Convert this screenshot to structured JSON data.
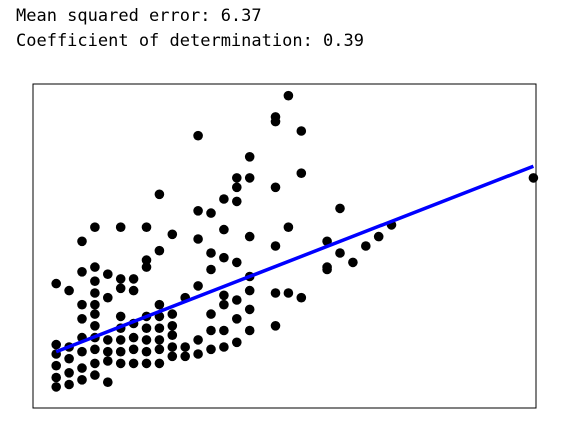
{
  "output": {
    "mse_line": "Mean squared error: 6.37",
    "r2_line": "Coefficient of determination: 0.39"
  },
  "colors": {
    "points": "#000000",
    "regression_line": "#0000ff",
    "frame": "#000000"
  },
  "chart_data": {
    "type": "scatter",
    "title": "",
    "xlabel": "",
    "ylabel": "",
    "xlim": [
      1.0,
      20.5
    ],
    "ylim": [
      -0.3,
      13.5
    ],
    "axes_ticks": "none",
    "grid": false,
    "points": [
      [
        1.9,
        0.6
      ],
      [
        1.9,
        1.0
      ],
      [
        1.9,
        1.5
      ],
      [
        1.9,
        2.0
      ],
      [
        1.9,
        2.4
      ],
      [
        1.9,
        5.0
      ],
      [
        2.4,
        0.7
      ],
      [
        2.4,
        1.2
      ],
      [
        2.4,
        1.8
      ],
      [
        2.4,
        2.3
      ],
      [
        2.4,
        4.7
      ],
      [
        2.9,
        0.9
      ],
      [
        2.9,
        1.4
      ],
      [
        2.9,
        2.1
      ],
      [
        2.9,
        2.7
      ],
      [
        2.9,
        3.5
      ],
      [
        2.9,
        4.1
      ],
      [
        2.9,
        5.5
      ],
      [
        2.9,
        6.8
      ],
      [
        3.4,
        1.1
      ],
      [
        3.4,
        1.6
      ],
      [
        3.4,
        2.2
      ],
      [
        3.4,
        2.7
      ],
      [
        3.4,
        3.2
      ],
      [
        3.4,
        3.7
      ],
      [
        3.4,
        4.1
      ],
      [
        3.4,
        4.6
      ],
      [
        3.4,
        5.1
      ],
      [
        3.4,
        5.7
      ],
      [
        3.4,
        7.4
      ],
      [
        3.9,
        0.8
      ],
      [
        3.9,
        1.7
      ],
      [
        3.9,
        2.1
      ],
      [
        3.9,
        2.6
      ],
      [
        3.9,
        4.4
      ],
      [
        3.9,
        5.4
      ],
      [
        4.4,
        1.6
      ],
      [
        4.4,
        2.1
      ],
      [
        4.4,
        2.6
      ],
      [
        4.4,
        3.1
      ],
      [
        4.4,
        3.6
      ],
      [
        4.4,
        4.8
      ],
      [
        4.4,
        5.2
      ],
      [
        4.4,
        7.4
      ],
      [
        4.9,
        1.6
      ],
      [
        4.9,
        2.2
      ],
      [
        4.9,
        2.7
      ],
      [
        4.9,
        3.3
      ],
      [
        4.9,
        4.7
      ],
      [
        4.9,
        5.2
      ],
      [
        5.4,
        1.6
      ],
      [
        5.4,
        2.1
      ],
      [
        5.4,
        2.6
      ],
      [
        5.4,
        3.1
      ],
      [
        5.4,
        3.6
      ],
      [
        5.4,
        5.7
      ],
      [
        5.4,
        6.0
      ],
      [
        5.4,
        7.4
      ],
      [
        5.9,
        1.6
      ],
      [
        5.9,
        2.2
      ],
      [
        5.9,
        2.6
      ],
      [
        5.9,
        3.1
      ],
      [
        5.9,
        3.6
      ],
      [
        5.9,
        4.1
      ],
      [
        5.9,
        6.4
      ],
      [
        5.9,
        8.8
      ],
      [
        6.4,
        1.9
      ],
      [
        6.4,
        2.3
      ],
      [
        6.4,
        2.8
      ],
      [
        6.4,
        3.2
      ],
      [
        6.4,
        3.7
      ],
      [
        6.4,
        7.1
      ],
      [
        6.9,
        1.9
      ],
      [
        6.9,
        2.3
      ],
      [
        6.9,
        4.4
      ],
      [
        7.4,
        2.0
      ],
      [
        7.4,
        2.6
      ],
      [
        7.4,
        4.9
      ],
      [
        7.4,
        6.9
      ],
      [
        7.4,
        8.1
      ],
      [
        7.4,
        11.3
      ],
      [
        7.9,
        2.2
      ],
      [
        7.9,
        3.0
      ],
      [
        7.9,
        3.7
      ],
      [
        7.9,
        5.6
      ],
      [
        7.9,
        6.3
      ],
      [
        7.9,
        8.0
      ],
      [
        8.4,
        2.3
      ],
      [
        8.4,
        3.0
      ],
      [
        8.4,
        4.1
      ],
      [
        8.4,
        4.5
      ],
      [
        8.4,
        6.1
      ],
      [
        8.4,
        7.3
      ],
      [
        8.4,
        8.6
      ],
      [
        8.9,
        2.5
      ],
      [
        8.9,
        3.5
      ],
      [
        8.9,
        4.3
      ],
      [
        8.9,
        5.9
      ],
      [
        8.9,
        8.5
      ],
      [
        8.9,
        9.1
      ],
      [
        8.9,
        9.5
      ],
      [
        9.4,
        3.0
      ],
      [
        9.4,
        3.9
      ],
      [
        9.4,
        4.7
      ],
      [
        9.4,
        5.3
      ],
      [
        9.4,
        7.0
      ],
      [
        9.4,
        9.5
      ],
      [
        9.4,
        10.4
      ],
      [
        10.4,
        3.2
      ],
      [
        10.4,
        4.6
      ],
      [
        10.4,
        6.6
      ],
      [
        10.4,
        9.1
      ],
      [
        10.4,
        11.9
      ],
      [
        10.4,
        12.1
      ],
      [
        10.9,
        4.6
      ],
      [
        10.9,
        7.4
      ],
      [
        10.9,
        13.0
      ],
      [
        11.4,
        4.4
      ],
      [
        11.4,
        9.7
      ],
      [
        11.4,
        11.5
      ],
      [
        12.4,
        5.6
      ],
      [
        12.4,
        5.7
      ],
      [
        12.4,
        6.8
      ],
      [
        12.9,
        6.3
      ],
      [
        12.9,
        8.2
      ],
      [
        13.9,
        6.6
      ],
      [
        13.4,
        5.9
      ],
      [
        14.9,
        7.5
      ],
      [
        14.4,
        7.0
      ],
      [
        20.4,
        9.5
      ]
    ],
    "regression_line": {
      "x": [
        1.9,
        20.4
      ],
      "y": [
        2.1,
        10.0
      ]
    }
  }
}
